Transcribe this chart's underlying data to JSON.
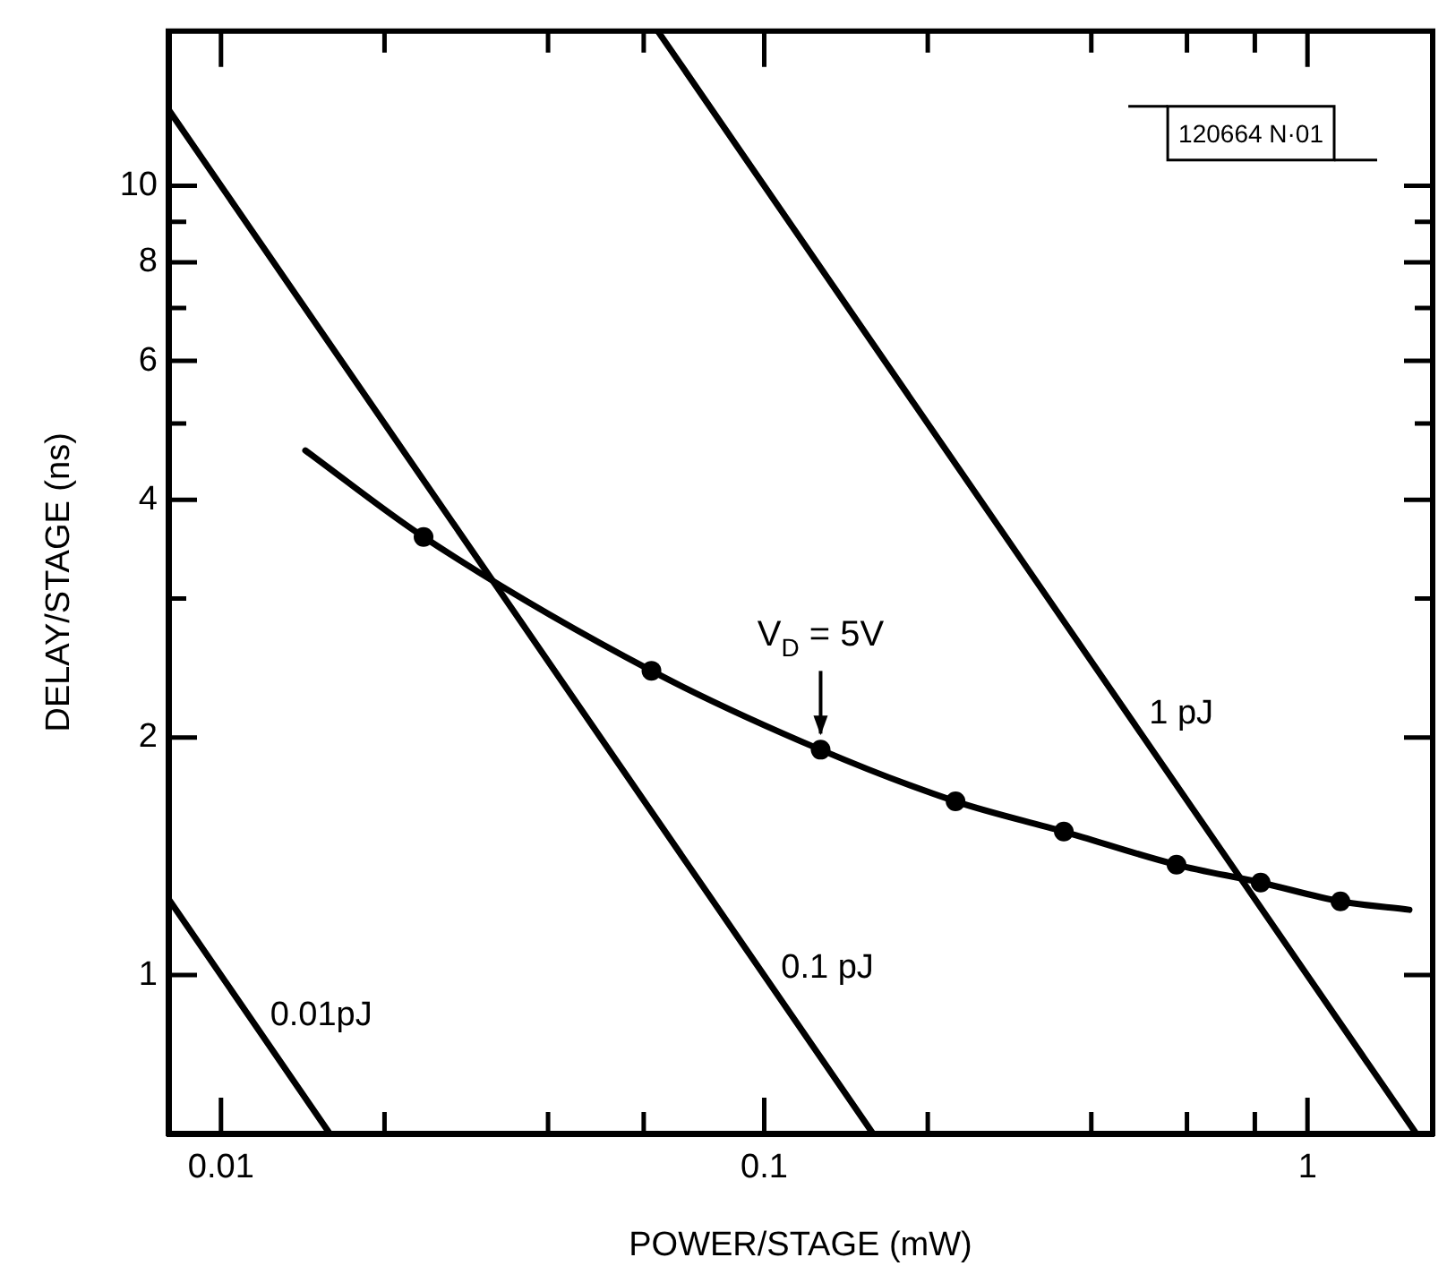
{
  "chart_data": {
    "type": "line",
    "xlabel": "POWER/STAGE (mW)",
    "ylabel": "DELAY/STAGE (ns)",
    "log": "xy",
    "grid": false,
    "legend": false,
    "line_style": "solid",
    "xlim": [
      0.008,
      1.7
    ],
    "ylim": [
      0.63,
      15.7
    ],
    "xticks": [
      0.01,
      {
        "value": 0.02,
        "label": null
      },
      {
        "value": 0.04,
        "label": null
      },
      {
        "value": 0.06,
        "label": null
      },
      0.1,
      {
        "value": 0.2,
        "label": null
      },
      {
        "value": 0.4,
        "label": null
      },
      {
        "value": 0.6,
        "label": null
      },
      {
        "value": 0.8,
        "label": null
      },
      1
    ],
    "yticks": [
      1,
      2,
      {
        "value": 3,
        "label": null
      },
      4,
      {
        "value": 5,
        "label": null
      },
      6,
      {
        "value": 7,
        "label": null
      },
      8,
      {
        "value": 9,
        "label": null
      },
      10
    ],
    "series": [
      {
        "type": "line",
        "color": "#000000",
        "marker": "none",
        "x": [
          0.0143,
          0.0236,
          0.062,
          0.127,
          0.225,
          0.356,
          0.574,
          0.82,
          1.15,
          1.54
        ],
        "values": [
          4.62,
          3.59,
          2.43,
          1.93,
          1.66,
          1.52,
          1.38,
          1.31,
          1.24,
          1.21
        ]
      },
      {
        "type": "scatter",
        "color": "#000000",
        "marker": "circle",
        "x": [
          0.0236,
          0.062,
          0.127,
          0.225,
          0.356,
          0.574,
          0.82,
          1.15
        ],
        "values": [
          3.59,
          2.43,
          1.93,
          1.66,
          1.52,
          1.38,
          1.31,
          1.24
        ]
      },
      {
        "type": "line",
        "name": "0.01pJ",
        "color": "#000000",
        "marker": "none",
        "x": [
          0.008,
          0.0158
        ],
        "values": [
          1.25,
          0.632
        ]
      },
      {
        "type": "line",
        "name": "0.1 pJ",
        "color": "#000000",
        "marker": "none",
        "x": [
          0.008,
          0.158
        ],
        "values": [
          12.5,
          0.632
        ]
      },
      {
        "type": "line",
        "name": "1 pJ",
        "color": "#000000",
        "marker": "none",
        "x": [
          0.0637,
          1.58
        ],
        "values": [
          15.7,
          0.632
        ]
      }
    ],
    "annotations": [
      {
        "text": "V$_{D}$ = 5V",
        "x": 0.127,
        "y": 1.93
      },
      "120664 N·01"
    ]
  }
}
